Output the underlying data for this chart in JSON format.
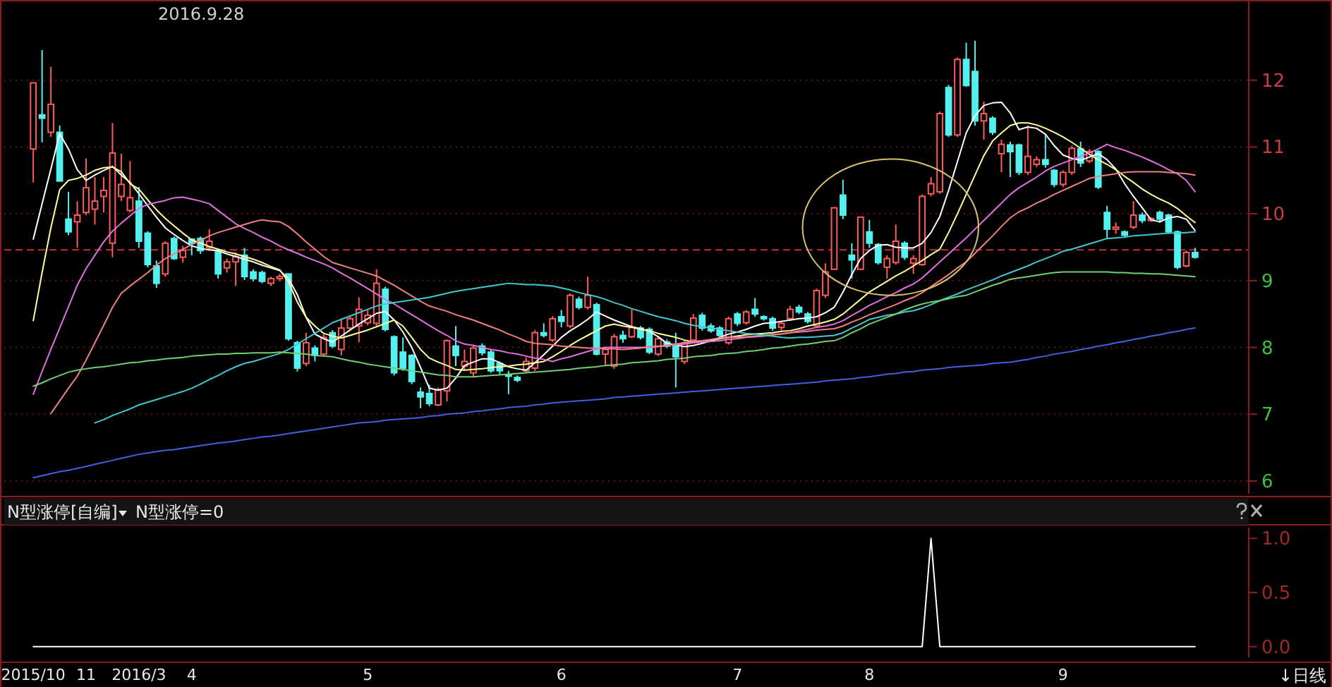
{
  "chart_data": [
    {
      "type": "candlestick",
      "title": "2016.9.28",
      "ylim": [
        5.81,
        13.2
      ],
      "yticks": [
        6,
        7,
        8,
        9,
        10,
        11,
        12
      ],
      "tick_labels": "y",
      "grid": "y",
      "ref_lines": [
        {
          "axis": "y",
          "value": 9.46,
          "color": "#c03030",
          "line_style": "dashed"
        }
      ],
      "categories": [
        null,
        null,
        null,
        null,
        null,
        null,
        null,
        null,
        null,
        null,
        null,
        null,
        null,
        null,
        null,
        null,
        null,
        null,
        null,
        null,
        null,
        null,
        null,
        null,
        null,
        null,
        null,
        null,
        null,
        null,
        null,
        null,
        null,
        null,
        null,
        null,
        null,
        null,
        null,
        null,
        null,
        null,
        null,
        null,
        null,
        null,
        null,
        null,
        null,
        null,
        null,
        null,
        null,
        null,
        null,
        null,
        null,
        null,
        null,
        null,
        null,
        null,
        null,
        null,
        null,
        null,
        null,
        null,
        null,
        null,
        null,
        null,
        null,
        null,
        null,
        null,
        null,
        null,
        null,
        null,
        null,
        null,
        null,
        null,
        null,
        null,
        null,
        null,
        null,
        null,
        null,
        null,
        null,
        null,
        null,
        null,
        null,
        null,
        null,
        null,
        null,
        null,
        null,
        null,
        null,
        null,
        null,
        null,
        null,
        null,
        null,
        null,
        null,
        null,
        null,
        null,
        null,
        null,
        null,
        null,
        null,
        null,
        null,
        null,
        null,
        null,
        null,
        null,
        null,
        null,
        null,
        null,
        null
      ],
      "ohlc": [
        [
          10.97,
          11.96,
          10.47,
          11.96
        ],
        [
          11.48,
          12.45,
          11.07,
          11.43
        ],
        [
          11.22,
          12.2,
          11.15,
          11.64
        ],
        [
          11.22,
          11.32,
          10.49,
          10.49
        ],
        [
          9.92,
          10.33,
          9.68,
          9.73
        ],
        [
          9.88,
          10.19,
          9.49,
          9.98
        ],
        [
          10.02,
          10.83,
          9.98,
          10.39
        ],
        [
          10.07,
          10.55,
          9.84,
          10.19
        ],
        [
          10.26,
          10.55,
          10.02,
          10.35
        ],
        [
          9.56,
          11.36,
          9.35,
          10.91
        ],
        [
          10.26,
          10.9,
          10.19,
          10.44
        ],
        [
          10.05,
          10.79,
          10.02,
          10.24
        ],
        [
          10.19,
          10.4,
          9.49,
          9.59
        ],
        [
          9.71,
          9.74,
          9.2,
          9.24
        ],
        [
          9.22,
          9.3,
          8.89,
          8.96
        ],
        [
          9.1,
          9.59,
          9.06,
          9.56
        ],
        [
          9.63,
          9.66,
          9.31,
          9.33
        ],
        [
          9.35,
          9.52,
          9.27,
          9.45
        ],
        [
          9.62,
          9.63,
          9.38,
          9.56
        ],
        [
          9.63,
          9.66,
          9.4,
          9.45
        ],
        [
          9.49,
          9.77,
          9.45,
          9.59
        ],
        [
          9.43,
          9.47,
          9.03,
          9.1
        ],
        [
          9.19,
          9.33,
          9.12,
          9.28
        ],
        [
          9.28,
          9.42,
          8.92,
          9.36
        ],
        [
          9.38,
          9.49,
          9.01,
          9.06
        ],
        [
          9.13,
          9.17,
          8.99,
          9.03
        ],
        [
          9.12,
          9.15,
          8.96,
          8.99
        ],
        [
          8.96,
          9.06,
          8.92,
          9.03
        ],
        [
          9.03,
          9.1,
          8.99,
          9.06
        ],
        [
          9.1,
          9.1,
          8.1,
          8.13
        ],
        [
          8.07,
          8.1,
          7.64,
          7.69
        ],
        [
          7.76,
          8.22,
          7.72,
          8.07
        ],
        [
          7.99,
          8.03,
          7.79,
          7.88
        ],
        [
          7.9,
          8.2,
          7.86,
          8.15
        ],
        [
          8.22,
          8.26,
          7.99,
          8.02
        ],
        [
          7.97,
          8.43,
          7.88,
          8.29
        ],
        [
          8.29,
          8.47,
          8.26,
          8.43
        ],
        [
          8.32,
          8.75,
          8.08,
          8.57
        ],
        [
          8.37,
          8.56,
          8.33,
          8.48
        ],
        [
          8.36,
          9.17,
          8.32,
          8.96
        ],
        [
          8.87,
          8.91,
          8.24,
          8.27
        ],
        [
          8.16,
          8.18,
          7.58,
          7.62
        ],
        [
          7.93,
          8.15,
          7.65,
          7.69
        ],
        [
          7.88,
          7.9,
          7.45,
          7.49
        ],
        [
          7.33,
          7.4,
          7.09,
          7.26
        ],
        [
          7.31,
          7.44,
          7.12,
          7.16
        ],
        [
          7.14,
          7.4,
          7.12,
          7.37
        ],
        [
          7.35,
          8.12,
          7.19,
          8.1
        ],
        [
          8.02,
          8.32,
          7.72,
          7.88
        ],
        [
          7.72,
          7.97,
          7.65,
          7.79
        ],
        [
          7.62,
          8.04,
          7.55,
          7.99
        ],
        [
          8.02,
          8.06,
          7.88,
          7.92
        ],
        [
          7.93,
          7.97,
          7.62,
          7.65
        ],
        [
          7.76,
          7.79,
          7.6,
          7.65
        ],
        [
          7.59,
          7.65,
          7.3,
          7.57
        ],
        [
          7.55,
          7.58,
          7.48,
          7.51
        ],
        [
          7.65,
          7.85,
          7.62,
          7.79
        ],
        [
          7.69,
          8.26,
          7.65,
          8.22
        ],
        [
          8.22,
          8.36,
          8.15,
          8.18
        ],
        [
          8.11,
          8.47,
          8.08,
          8.43
        ],
        [
          8.46,
          8.56,
          8.3,
          8.39
        ],
        [
          8.32,
          8.81,
          8.29,
          8.78
        ],
        [
          8.72,
          8.76,
          8.57,
          8.6
        ],
        [
          8.6,
          9.06,
          8.57,
          8.78
        ],
        [
          8.64,
          8.67,
          7.88,
          7.9
        ],
        [
          7.9,
          8.0,
          7.72,
          7.97
        ],
        [
          7.72,
          8.2,
          7.68,
          8.16
        ],
        [
          8.18,
          8.25,
          8.07,
          8.13
        ],
        [
          8.16,
          8.57,
          8.14,
          8.3
        ],
        [
          8.29,
          8.32,
          8.12,
          8.15
        ],
        [
          8.27,
          8.3,
          7.9,
          7.93
        ],
        [
          7.9,
          8.17,
          7.87,
          8.13
        ],
        [
          8.08,
          8.12,
          7.99,
          8.02
        ],
        [
          8.04,
          8.22,
          7.4,
          7.86
        ],
        [
          7.79,
          8.11,
          7.75,
          8.07
        ],
        [
          8.11,
          8.5,
          8.08,
          8.44
        ],
        [
          8.48,
          8.52,
          8.25,
          8.29
        ],
        [
          8.32,
          8.36,
          8.22,
          8.25
        ],
        [
          8.29,
          8.32,
          8.15,
          8.18
        ],
        [
          8.07,
          8.46,
          8.04,
          8.43
        ],
        [
          8.5,
          8.53,
          8.32,
          8.36
        ],
        [
          8.37,
          8.56,
          8.34,
          8.53
        ],
        [
          8.57,
          8.74,
          8.46,
          8.5
        ],
        [
          8.46,
          8.48,
          8.4,
          8.43
        ],
        [
          8.43,
          8.46,
          8.25,
          8.29
        ],
        [
          8.3,
          8.4,
          8.26,
          8.36
        ],
        [
          8.43,
          8.62,
          8.4,
          8.57
        ],
        [
          8.6,
          8.64,
          8.5,
          8.53
        ],
        [
          8.5,
          8.53,
          8.36,
          8.39
        ],
        [
          8.32,
          8.88,
          8.29,
          8.85
        ],
        [
          8.78,
          9.26,
          8.74,
          9.13
        ],
        [
          9.17,
          10.09,
          9.17,
          10.09
        ],
        [
          10.28,
          10.51,
          9.92,
          9.98
        ],
        [
          9.38,
          9.56,
          9.03,
          9.31
        ],
        [
          9.17,
          9.95,
          9.17,
          9.95
        ],
        [
          9.73,
          9.91,
          9.49,
          9.56
        ],
        [
          9.54,
          9.56,
          9.24,
          9.27
        ],
        [
          9.2,
          9.38,
          9.03,
          9.33
        ],
        [
          9.27,
          9.84,
          9.24,
          9.59
        ],
        [
          9.56,
          9.59,
          9.31,
          9.35
        ],
        [
          9.26,
          9.38,
          9.1,
          9.33
        ],
        [
          9.24,
          10.29,
          9.22,
          10.26
        ],
        [
          10.3,
          10.55,
          10.26,
          10.45
        ],
        [
          10.33,
          11.53,
          10.3,
          11.5
        ],
        [
          11.89,
          11.93,
          11.15,
          11.18
        ],
        [
          11.18,
          12.34,
          11.15,
          12.31
        ],
        [
          12.31,
          12.56,
          11.9,
          11.92
        ],
        [
          12.13,
          12.59,
          11.32,
          11.39
        ],
        [
          11.39,
          11.68,
          11.11,
          11.5
        ],
        [
          11.43,
          11.46,
          11.18,
          11.22
        ],
        [
          10.9,
          11.11,
          10.62,
          11.04
        ],
        [
          11.03,
          11.08,
          10.55,
          10.93
        ],
        [
          11.03,
          11.05,
          10.58,
          10.62
        ],
        [
          10.62,
          11.32,
          10.58,
          10.86
        ],
        [
          10.74,
          10.86,
          10.7,
          10.81
        ],
        [
          10.81,
          11.18,
          10.69,
          10.74
        ],
        [
          10.65,
          10.67,
          10.4,
          10.44
        ],
        [
          10.44,
          10.65,
          10.4,
          10.62
        ],
        [
          10.62,
          11.02,
          10.58,
          10.98
        ],
        [
          10.97,
          11.08,
          10.7,
          10.76
        ],
        [
          10.79,
          10.97,
          10.76,
          10.93
        ],
        [
          10.93,
          10.95,
          10.37,
          10.4
        ],
        [
          10.02,
          10.12,
          9.63,
          9.77
        ],
        [
          9.77,
          9.87,
          9.7,
          9.8
        ],
        [
          9.73,
          9.75,
          9.65,
          9.68
        ],
        [
          9.8,
          10.19,
          9.77,
          9.98
        ],
        [
          9.98,
          10.02,
          9.86,
          9.9
        ],
        [
          9.9,
          9.95,
          9.88,
          9.93
        ],
        [
          10.02,
          10.05,
          9.87,
          9.92
        ],
        [
          9.98,
          10.0,
          9.7,
          9.73
        ],
        [
          9.73,
          9.75,
          9.17,
          9.2
        ],
        [
          9.22,
          9.45,
          9.2,
          9.42
        ],
        [
          9.42,
          9.49,
          9.33,
          9.35
        ]
      ],
      "series": [
        {
          "type": "line",
          "color": "#ffffff",
          "values": [
            9.62,
            10.15,
            10.67,
            11.2,
            10.97,
            10.66,
            10.5,
            10.58,
            10.65,
            10.71,
            10.58,
            10.47,
            10.3,
            10.12,
            9.95,
            9.79,
            9.69,
            9.6,
            9.52,
            9.48,
            9.46,
            9.45,
            9.4,
            9.36,
            9.32,
            9.28,
            9.23,
            9.19,
            9.15,
            9.03,
            8.79,
            8.45,
            8.2,
            8.13,
            8.08,
            8.17,
            8.26,
            8.35,
            8.43,
            8.51,
            8.54,
            8.41,
            8.23,
            8.0,
            7.7,
            7.39,
            7.36,
            7.39,
            7.54,
            7.73,
            7.78,
            7.83,
            7.83,
            7.77,
            7.71,
            7.68,
            7.66,
            7.77,
            7.89,
            8.02,
            8.15,
            8.25,
            8.33,
            8.42,
            8.53,
            8.47,
            8.41,
            8.36,
            8.31,
            8.28,
            8.24,
            8.16,
            8.06,
            8.04,
            8.01,
            8.03,
            8.06,
            8.1,
            8.15,
            8.2,
            8.23,
            8.27,
            8.32,
            8.36,
            8.37,
            8.39,
            8.41,
            8.43,
            8.44,
            8.46,
            8.52,
            8.6,
            8.83,
            9.09,
            9.33,
            9.45,
            9.53,
            9.54,
            9.5,
            9.49,
            9.49,
            9.56,
            9.72,
            9.96,
            10.35,
            10.78,
            11.21,
            11.47,
            11.62,
            11.66,
            11.67,
            11.51,
            11.26,
            11.3,
            11.28,
            11.19,
            11.02,
            10.88,
            10.83,
            10.8,
            10.85,
            10.9,
            10.81,
            10.67,
            10.45,
            10.26,
            10.09,
            9.91,
            9.88,
            9.94,
            9.96,
            9.92,
            9.75
          ]
        },
        {
          "type": "line",
          "color": "#ffff99",
          "values": [
            8.4,
            9.12,
            9.79,
            10.36,
            10.5,
            10.53,
            10.58,
            10.65,
            10.69,
            10.7,
            10.63,
            10.45,
            10.37,
            10.21,
            10.06,
            9.93,
            9.82,
            9.71,
            9.61,
            9.56,
            9.51,
            9.47,
            9.43,
            9.4,
            9.36,
            9.32,
            9.27,
            9.21,
            9.16,
            8.98,
            8.68,
            8.45,
            8.32,
            8.21,
            8.17,
            8.14,
            8.18,
            8.22,
            8.26,
            8.31,
            8.36,
            8.41,
            8.32,
            8.15,
            7.97,
            7.84,
            7.78,
            7.73,
            7.67,
            7.66,
            7.67,
            7.68,
            7.7,
            7.71,
            7.72,
            7.74,
            7.75,
            7.77,
            7.79,
            7.86,
            7.94,
            8.03,
            8.11,
            8.18,
            8.25,
            8.32,
            8.35,
            8.32,
            8.3,
            8.27,
            8.25,
            8.21,
            8.18,
            8.15,
            8.11,
            8.08,
            8.08,
            8.1,
            8.13,
            8.15,
            8.17,
            8.19,
            8.2,
            8.21,
            8.22,
            8.24,
            8.25,
            8.28,
            8.32,
            8.35,
            8.38,
            8.42,
            8.5,
            8.61,
            8.72,
            8.83,
            8.91,
            8.99,
            9.07,
            9.14,
            9.22,
            9.3,
            9.39,
            9.47,
            9.72,
            10.0,
            10.29,
            10.58,
            10.87,
            11.09,
            11.21,
            11.32,
            11.36,
            11.36,
            11.33,
            11.28,
            11.22,
            11.15,
            11.07,
            10.98,
            10.89,
            10.81,
            10.74,
            10.66,
            10.56,
            10.47,
            10.37,
            10.29,
            10.22,
            10.16,
            10.08,
            9.97,
            9.87
          ]
        },
        {
          "type": "line",
          "color": "#e070e0",
          "values": [
            7.3,
            7.64,
            7.97,
            8.29,
            8.61,
            8.93,
            9.18,
            9.38,
            9.58,
            9.74,
            9.86,
            9.97,
            10.08,
            10.14,
            10.17,
            10.2,
            10.24,
            10.25,
            10.22,
            10.19,
            10.15,
            10.05,
            9.95,
            9.85,
            9.78,
            9.72,
            9.65,
            9.59,
            9.52,
            9.46,
            9.41,
            9.35,
            9.3,
            9.25,
            9.19,
            9.11,
            9.04,
            8.96,
            8.88,
            8.8,
            8.72,
            8.65,
            8.57,
            8.49,
            8.41,
            8.33,
            8.25,
            8.18,
            8.1,
            8.05,
            8.03,
            8.0,
            7.97,
            7.95,
            7.92,
            7.9,
            7.87,
            7.84,
            7.82,
            7.79,
            7.83,
            7.86,
            7.9,
            7.94,
            7.98,
            8.0,
            8.0,
            8.0,
            8.0,
            8.0,
            8.0,
            8.01,
            8.03,
            8.04,
            8.05,
            8.07,
            8.08,
            8.09,
            8.1,
            8.12,
            8.13,
            8.15,
            8.16,
            8.17,
            8.19,
            8.2,
            8.22,
            8.25,
            8.27,
            8.3,
            8.32,
            8.35,
            8.4,
            8.48,
            8.55,
            8.63,
            8.69,
            8.76,
            8.82,
            8.89,
            8.95,
            9.04,
            9.16,
            9.28,
            9.4,
            9.52,
            9.64,
            9.77,
            9.9,
            10.03,
            10.16,
            10.29,
            10.39,
            10.47,
            10.55,
            10.64,
            10.71,
            10.76,
            10.81,
            10.86,
            10.91,
            10.97,
            11.04,
            10.99,
            10.95,
            10.9,
            10.85,
            10.79,
            10.73,
            10.66,
            10.6,
            10.5,
            10.33
          ]
        },
        {
          "type": "line",
          "color": "#f08080",
          "values": [
            null,
            null,
            7.01,
            7.2,
            7.39,
            7.57,
            7.81,
            8.07,
            8.33,
            8.6,
            8.81,
            8.92,
            9.02,
            9.12,
            9.23,
            9.33,
            9.4,
            9.47,
            9.54,
            9.6,
            9.67,
            9.72,
            9.76,
            9.8,
            9.84,
            9.88,
            9.91,
            9.89,
            9.88,
            9.81,
            9.7,
            9.58,
            9.47,
            9.36,
            9.27,
            9.23,
            9.19,
            9.15,
            9.11,
            9.07,
            9.0,
            8.93,
            8.85,
            8.77,
            8.69,
            8.62,
            8.58,
            8.54,
            8.49,
            8.45,
            8.41,
            8.36,
            8.31,
            8.26,
            8.2,
            8.15,
            8.09,
            8.06,
            8.05,
            8.04,
            8.02,
            8.01,
            8.0,
            7.99,
            7.99,
            7.98,
            7.98,
            7.97,
            7.98,
            7.99,
            8.01,
            8.02,
            8.03,
            8.05,
            8.07,
            8.09,
            8.1,
            8.12,
            8.14,
            8.15,
            8.15,
            8.16,
            8.17,
            8.18,
            8.19,
            8.2,
            8.22,
            8.23,
            8.24,
            8.26,
            8.27,
            8.28,
            8.32,
            8.38,
            8.43,
            8.49,
            8.54,
            8.59,
            8.64,
            8.7,
            8.75,
            8.82,
            8.91,
            9.0,
            9.09,
            9.19,
            9.28,
            9.41,
            9.54,
            9.67,
            9.81,
            9.94,
            10.03,
            10.09,
            10.16,
            10.22,
            10.29,
            10.35,
            10.41,
            10.47,
            10.53,
            10.56,
            10.58,
            10.6,
            10.62,
            10.63,
            10.63,
            10.63,
            10.63,
            10.62,
            10.61,
            10.6,
            10.58
          ]
        },
        {
          "type": "line",
          "color": "#40c8d0",
          "values": [
            null,
            null,
            null,
            null,
            null,
            null,
            null,
            6.87,
            6.92,
            6.98,
            7.03,
            7.08,
            7.14,
            7.18,
            7.22,
            7.26,
            7.3,
            7.34,
            7.39,
            7.45,
            7.52,
            7.58,
            7.65,
            7.71,
            7.76,
            7.79,
            7.83,
            7.87,
            7.91,
            7.97,
            8.05,
            8.13,
            8.21,
            8.29,
            8.37,
            8.42,
            8.47,
            8.52,
            8.57,
            8.62,
            8.65,
            8.67,
            8.69,
            8.71,
            8.73,
            8.75,
            8.78,
            8.81,
            8.84,
            8.86,
            8.88,
            8.9,
            8.92,
            8.94,
            8.96,
            8.95,
            8.94,
            8.94,
            8.93,
            8.92,
            8.89,
            8.86,
            8.82,
            8.79,
            8.76,
            8.72,
            8.67,
            8.63,
            8.58,
            8.54,
            8.5,
            8.46,
            8.43,
            8.4,
            8.36,
            8.33,
            8.31,
            8.29,
            8.27,
            8.25,
            8.23,
            8.21,
            8.2,
            8.18,
            8.17,
            8.15,
            8.14,
            8.15,
            8.15,
            8.16,
            8.17,
            8.18,
            8.22,
            8.29,
            8.35,
            8.42,
            8.45,
            8.48,
            8.5,
            8.53,
            8.55,
            8.59,
            8.64,
            8.7,
            8.75,
            8.8,
            8.86,
            8.91,
            8.96,
            9.01,
            9.07,
            9.12,
            9.17,
            9.22,
            9.28,
            9.33,
            9.38,
            9.44,
            9.47,
            9.51,
            9.55,
            9.59,
            9.63,
            9.64,
            9.65,
            9.67,
            9.68,
            9.69,
            9.7,
            9.71,
            9.71,
            9.72,
            9.73
          ]
        },
        {
          "type": "line",
          "color": "#70d070",
          "values": [
            7.42,
            7.47,
            7.53,
            7.58,
            7.63,
            7.66,
            7.68,
            7.7,
            7.71,
            7.73,
            7.75,
            7.77,
            7.78,
            7.8,
            7.81,
            7.83,
            7.84,
            7.85,
            7.87,
            7.88,
            7.89,
            7.9,
            7.9,
            7.91,
            7.91,
            7.92,
            7.92,
            7.92,
            7.93,
            7.92,
            7.91,
            7.9,
            7.88,
            7.87,
            7.86,
            7.83,
            7.8,
            7.78,
            7.75,
            7.73,
            7.71,
            7.69,
            7.67,
            7.65,
            7.63,
            7.61,
            7.59,
            7.58,
            7.56,
            7.56,
            7.56,
            7.57,
            7.58,
            7.59,
            7.6,
            7.61,
            7.62,
            7.63,
            7.64,
            7.65,
            7.66,
            7.67,
            7.69,
            7.7,
            7.71,
            7.73,
            7.74,
            7.75,
            7.77,
            7.78,
            7.79,
            7.8,
            7.82,
            7.83,
            7.84,
            7.86,
            7.87,
            7.88,
            7.9,
            7.91,
            7.92,
            7.94,
            7.95,
            7.97,
            7.99,
            8.0,
            8.02,
            8.04,
            8.05,
            8.07,
            8.09,
            8.1,
            8.15,
            8.22,
            8.28,
            8.35,
            8.4,
            8.45,
            8.5,
            8.56,
            8.61,
            8.65,
            8.68,
            8.7,
            8.73,
            8.76,
            8.78,
            8.83,
            8.88,
            8.93,
            8.97,
            9.02,
            9.04,
            9.06,
            9.08,
            9.1,
            9.12,
            9.13,
            9.13,
            9.13,
            9.13,
            9.13,
            9.13,
            9.12,
            9.12,
            9.11,
            9.11,
            9.1,
            9.1,
            9.09,
            9.08,
            9.07,
            9.06
          ]
        },
        {
          "type": "line",
          "color": "#4060e0",
          "values": [
            6.05,
            6.08,
            6.11,
            6.14,
            6.16,
            6.19,
            6.22,
            6.25,
            6.28,
            6.31,
            6.34,
            6.37,
            6.4,
            6.42,
            6.44,
            6.46,
            6.47,
            6.49,
            6.51,
            6.53,
            6.55,
            6.57,
            6.58,
            6.6,
            6.62,
            6.64,
            6.66,
            6.67,
            6.69,
            6.71,
            6.73,
            6.75,
            6.77,
            6.79,
            6.81,
            6.83,
            6.85,
            6.87,
            6.88,
            6.89,
            6.91,
            6.92,
            6.93,
            6.94,
            6.95,
            6.97,
            6.98,
            7.0,
            7.01,
            7.02,
            7.04,
            7.05,
            7.07,
            7.08,
            7.1,
            7.11,
            7.12,
            7.14,
            7.15,
            7.17,
            7.18,
            7.19,
            7.2,
            7.21,
            7.22,
            7.23,
            7.25,
            7.26,
            7.27,
            7.28,
            7.29,
            7.3,
            7.31,
            7.32,
            7.33,
            7.34,
            7.35,
            7.36,
            7.37,
            7.38,
            7.39,
            7.4,
            7.41,
            7.42,
            7.43,
            7.44,
            7.45,
            7.46,
            7.47,
            7.48,
            7.5,
            7.51,
            7.52,
            7.53,
            7.55,
            7.56,
            7.58,
            7.6,
            7.61,
            7.63,
            7.64,
            7.66,
            7.67,
            7.68,
            7.7,
            7.71,
            7.72,
            7.73,
            7.74,
            7.76,
            7.77,
            7.78,
            7.8,
            7.82,
            7.85,
            7.87,
            7.9,
            7.92,
            7.94,
            7.97,
            7.99,
            8.02,
            8.04,
            8.07,
            8.09,
            8.12,
            8.14,
            8.17,
            8.19,
            8.22,
            8.24,
            8.27,
            8.29
          ]
        }
      ]
    },
    {
      "type": "line",
      "title": "N型涨停[自编]",
      "subtitle": "N型涨停=0",
      "annotations": [
        "↓日线"
      ],
      "categories": [
        "2015/10",
        null,
        null,
        null,
        null,
        null,
        "11",
        null,
        null,
        null,
        null,
        null,
        "2016/3",
        null,
        null,
        null,
        null,
        null,
        "4",
        null,
        null,
        null,
        null,
        null,
        null,
        null,
        null,
        null,
        null,
        null,
        null,
        null,
        null,
        null,
        null,
        null,
        null,
        null,
        "5",
        null,
        null,
        null,
        null,
        null,
        null,
        null,
        null,
        null,
        null,
        null,
        null,
        null,
        null,
        null,
        null,
        null,
        null,
        null,
        null,
        null,
        "6",
        null,
        null,
        null,
        null,
        null,
        null,
        null,
        null,
        null,
        null,
        null,
        null,
        null,
        null,
        null,
        null,
        null,
        null,
        null,
        "7",
        null,
        null,
        null,
        null,
        null,
        null,
        null,
        null,
        null,
        null,
        null,
        null,
        null,
        null,
        "8",
        null,
        null,
        null,
        null,
        null,
        null,
        null,
        null,
        null,
        null,
        null,
        null,
        null,
        null,
        null,
        null,
        null,
        null,
        null,
        null,
        null,
        "9",
        null,
        null,
        null,
        null,
        null,
        null,
        null,
        null,
        null,
        null,
        null,
        null,
        null,
        null,
        null
      ],
      "ylim": [
        -0.1,
        1.1
      ],
      "yticks": [
        {
          "value": 0,
          "label": "0.0"
        },
        {
          "value": 0.5,
          "label": "0.5"
        },
        {
          "value": 1,
          "label": "1.0"
        }
      ],
      "series": [
        {
          "color": "#ffffff",
          "values": [
            0,
            0,
            0,
            0,
            0,
            0,
            0,
            0,
            0,
            0,
            0,
            0,
            0,
            0,
            0,
            0,
            0,
            0,
            0,
            0,
            0,
            0,
            0,
            0,
            0,
            0,
            0,
            0,
            0,
            0,
            0,
            0,
            0,
            0,
            0,
            0,
            0,
            0,
            0,
            0,
            0,
            0,
            0,
            0,
            0,
            0,
            0,
            0,
            0,
            0,
            0,
            0,
            0,
            0,
            0,
            0,
            0,
            0,
            0,
            0,
            0,
            0,
            0,
            0,
            0,
            0,
            0,
            0,
            0,
            0,
            0,
            0,
            0,
            0,
            0,
            0,
            0,
            0,
            0,
            0,
            0,
            0,
            0,
            0,
            0,
            0,
            0,
            0,
            0,
            0,
            0,
            0,
            0,
            0,
            0,
            0,
            0,
            0,
            0,
            0,
            0,
            0,
            1,
            0,
            0,
            0,
            0,
            0,
            0,
            0,
            0,
            0,
            0,
            0,
            0,
            0,
            0,
            0,
            0,
            0,
            0,
            0,
            0,
            0,
            0,
            0,
            0,
            0,
            0,
            0,
            0,
            0,
            0
          ]
        }
      ]
    }
  ]
}
